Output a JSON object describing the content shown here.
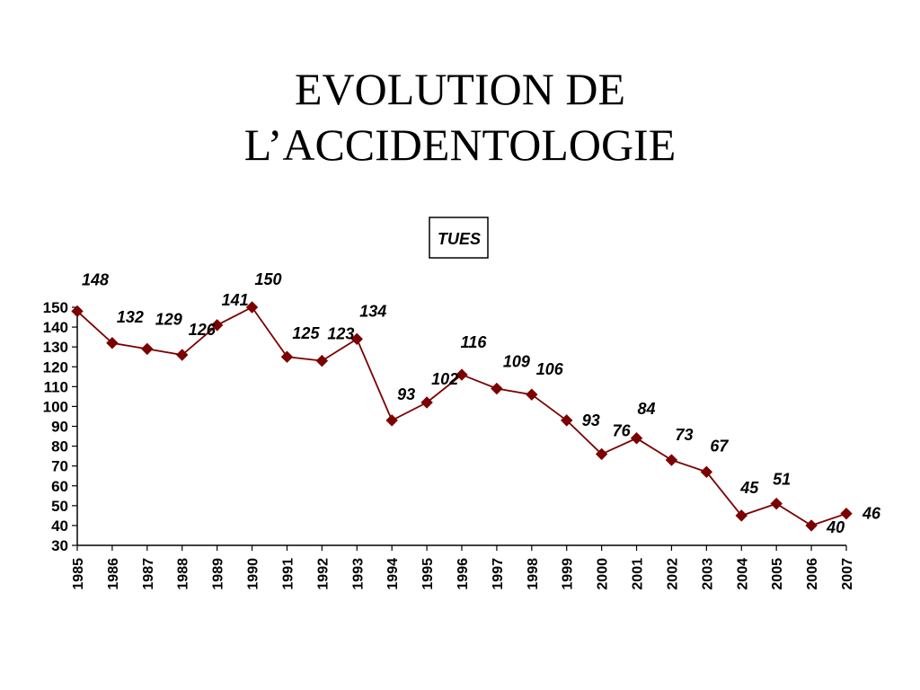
{
  "slide": {
    "title_line1": "EVOLUTION DE",
    "title_line2": "L’ACCIDENTOLOGIE"
  },
  "chart_data": {
    "type": "line",
    "title": "TUES",
    "x": [
      "1985",
      "1986",
      "1987",
      "1988",
      "1989",
      "1990",
      "1991",
      "1992",
      "1993",
      "1994",
      "1995",
      "1996",
      "1997",
      "1998",
      "1999",
      "2000",
      "2001",
      "2002",
      "2003",
      "2004",
      "2005",
      "2006",
      "2007"
    ],
    "series": [
      {
        "values": [
          148,
          132,
          129,
          126,
          141,
          150,
          125,
          123,
          134,
          93,
          102,
          116,
          109,
          106,
          93,
          76,
          84,
          73,
          67,
          45,
          51,
          40,
          46
        ],
        "color": "#7b0000"
      }
    ],
    "yticks": [
      30,
      40,
      50,
      60,
      70,
      80,
      90,
      100,
      110,
      120,
      130,
      140,
      150
    ],
    "ylim": [
      30,
      150
    ],
    "grid": false,
    "legend": "none",
    "marker": "diamond"
  }
}
